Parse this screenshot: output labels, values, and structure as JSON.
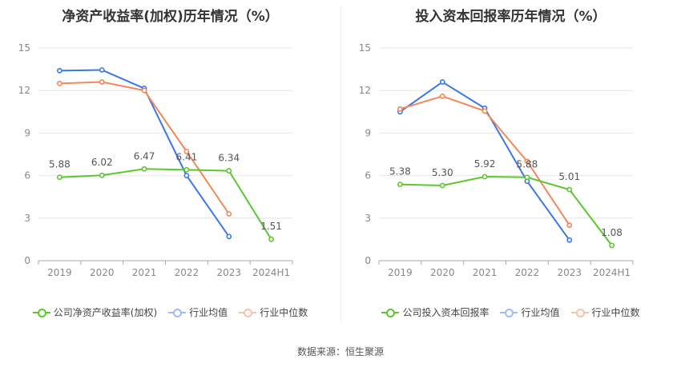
{
  "colors": {
    "company": "#5cc72e",
    "avg": "#3b78e6",
    "median": "#f2875b",
    "grid": "#e6e6e6",
    "axis_text": "#888888",
    "label": "#555555"
  },
  "chart_data": [
    {
      "type": "line",
      "title": "净资产收益率(加权)历年情况（%）",
      "categories": [
        "2019",
        "2020",
        "2021",
        "2022",
        "2023",
        "2024H1"
      ],
      "ylim": [
        0,
        15
      ],
      "yticks": [
        "0",
        "3",
        "6",
        "9",
        "12",
        "15"
      ],
      "series": [
        {
          "name": "公司净资产收益率(加权)",
          "color_key": "company",
          "values": [
            5.88,
            6.02,
            6.47,
            6.41,
            6.34,
            1.51
          ],
          "labels": [
            "5.88",
            "6.02",
            "6.47",
            "6.41",
            "6.34",
            "1.51"
          ]
        },
        {
          "name": "行业均值",
          "color_key": "avg",
          "values": [
            13.4,
            13.45,
            12.15,
            6.0,
            1.7,
            null
          ]
        },
        {
          "name": "行业中位数",
          "color_key": "median",
          "values": [
            12.5,
            12.6,
            12.0,
            7.7,
            3.3,
            null
          ]
        }
      ]
    },
    {
      "type": "line",
      "title": "投入资本回报率历年情况（%）",
      "categories": [
        "2019",
        "2020",
        "2021",
        "2022",
        "2023",
        "2024H1"
      ],
      "ylim": [
        0,
        15
      ],
      "yticks": [
        "0",
        "3",
        "6",
        "9",
        "12",
        "15"
      ],
      "series": [
        {
          "name": "公司投入资本回报率",
          "color_key": "company",
          "values": [
            5.38,
            5.3,
            5.92,
            5.88,
            5.01,
            1.08
          ],
          "labels": [
            "5.38",
            "5.30",
            "5.92",
            "5.88",
            "5.01",
            "1.08"
          ]
        },
        {
          "name": "行业均值",
          "color_key": "avg",
          "values": [
            10.5,
            12.6,
            10.75,
            5.6,
            1.45,
            null
          ]
        },
        {
          "name": "行业中位数",
          "color_key": "median",
          "values": [
            10.7,
            11.6,
            10.55,
            7.0,
            2.5,
            null
          ]
        }
      ]
    }
  ],
  "source_text": "数据来源：恒生聚源"
}
